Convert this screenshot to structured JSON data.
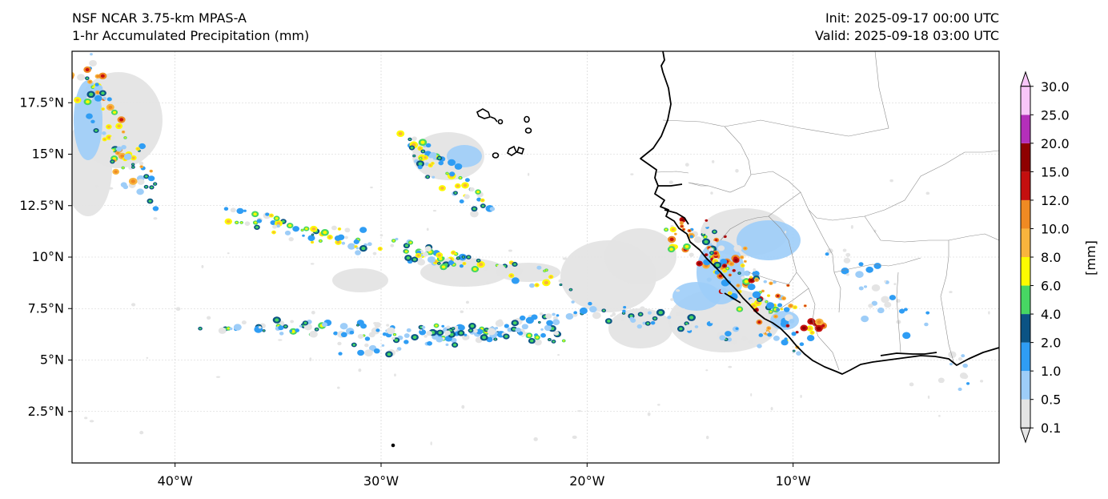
{
  "header": {
    "model_title": "NSF NCAR 3.75-km MPAS-A",
    "field_title": "1-hr Accumulated Precipitation (mm)",
    "init_label": "Init: 2025-09-17 00:00 UTC",
    "valid_label": "Valid: 2025-09-18 03:00 UTC"
  },
  "map": {
    "lon_ticks": [
      -40,
      -30,
      -20,
      -10
    ],
    "lon_tick_labels": [
      "40°W",
      "30°W",
      "20°W",
      "10°W"
    ],
    "lat_ticks": [
      17.5,
      15,
      12.5,
      10,
      7.5,
      5,
      2.5
    ],
    "lat_tick_labels": [
      "17.5°N",
      "15°N",
      "12.5°N",
      "10°N",
      "7.5°N",
      "5°N",
      "2.5°N"
    ],
    "lon_range": [
      -45,
      0
    ],
    "lat_range": [
      0,
      20
    ],
    "gridlines": true
  },
  "colorbar": {
    "label": "[mm]",
    "levels": [
      "0.1",
      "0.5",
      "1.0",
      "2.0",
      "4.0",
      "6.0",
      "8.0",
      "10.0",
      "12.0",
      "15.0",
      "20.0",
      "25.0",
      "30.0"
    ],
    "colors": [
      "#e4e4e4",
      "#9dcdf8",
      "#2f9df4",
      "#0b5384",
      "#47d663",
      "#fdfb00",
      "#f8b43d",
      "#ef8a23",
      "#c40f0f",
      "#8e0000",
      "#b42fba",
      "#f8c6f8"
    ],
    "extend": "both"
  }
}
